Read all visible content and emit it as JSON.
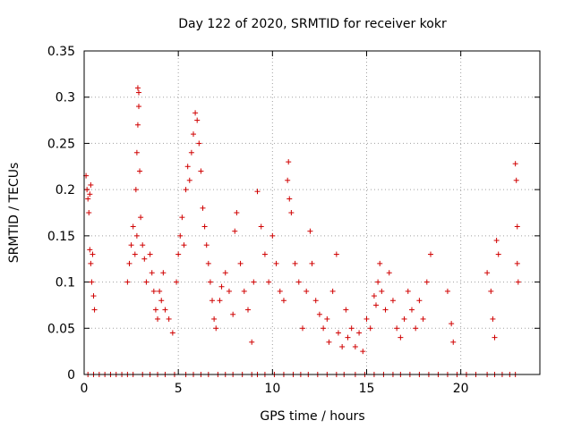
{
  "chart_data": {
    "type": "scatter",
    "title": "Day 122 of 2020, SRMTID for receiver kokr",
    "xlabel": "GPS time / hours",
    "ylabel": "SRMTID / TECUs",
    "xlim": [
      0,
      24.2
    ],
    "ylim": [
      0,
      0.35
    ],
    "xticks": [
      0,
      5,
      10,
      15,
      20
    ],
    "xtick_labels": [
      "0",
      "5",
      "10",
      "15",
      "20"
    ],
    "yticks": [
      0,
      0.05,
      0.1,
      0.15,
      0.2,
      0.25,
      0.3,
      0.35
    ],
    "ytick_labels": [
      "0",
      "0.05",
      "0.1",
      "0.15",
      "0.2",
      "0.25",
      "0.3",
      "0.35"
    ],
    "grid": true,
    "marker": "+",
    "color": "#d00000",
    "series": [
      {
        "name": "SRMTID",
        "points": [
          [
            0.1,
            0.215
          ],
          [
            0.15,
            0.2
          ],
          [
            0.2,
            0.19
          ],
          [
            0.25,
            0.175
          ],
          [
            0.3,
            0.195
          ],
          [
            0.35,
            0.205
          ],
          [
            0.3,
            0.135
          ],
          [
            0.35,
            0.12
          ],
          [
            0.4,
            0.1
          ],
          [
            0.45,
            0.13
          ],
          [
            0.5,
            0.085
          ],
          [
            0.55,
            0.07
          ],
          [
            2.3,
            0.1
          ],
          [
            2.4,
            0.12
          ],
          [
            2.5,
            0.14
          ],
          [
            2.6,
            0.16
          ],
          [
            2.7,
            0.13
          ],
          [
            2.8,
            0.15
          ],
          [
            2.75,
            0.2
          ],
          [
            2.8,
            0.24
          ],
          [
            2.85,
            0.27
          ],
          [
            2.9,
            0.29
          ],
          [
            2.9,
            0.305
          ],
          [
            2.85,
            0.31
          ],
          [
            2.95,
            0.22
          ],
          [
            3.0,
            0.17
          ],
          [
            3.1,
            0.14
          ],
          [
            3.2,
            0.125
          ],
          [
            3.3,
            0.1
          ],
          [
            3.5,
            0.13
          ],
          [
            3.6,
            0.11
          ],
          [
            3.7,
            0.09
          ],
          [
            3.8,
            0.07
          ],
          [
            3.9,
            0.06
          ],
          [
            4.0,
            0.09
          ],
          [
            4.1,
            0.08
          ],
          [
            4.2,
            0.11
          ],
          [
            4.3,
            0.07
          ],
          [
            4.5,
            0.06
          ],
          [
            4.7,
            0.045
          ],
          [
            4.9,
            0.1
          ],
          [
            5.0,
            0.13
          ],
          [
            5.1,
            0.15
          ],
          [
            5.2,
            0.17
          ],
          [
            5.3,
            0.14
          ],
          [
            5.4,
            0.2
          ],
          [
            5.5,
            0.225
          ],
          [
            5.6,
            0.21
          ],
          [
            5.7,
            0.24
          ],
          [
            5.8,
            0.26
          ],
          [
            5.9,
            0.283
          ],
          [
            6.0,
            0.275
          ],
          [
            6.1,
            0.25
          ],
          [
            6.2,
            0.22
          ],
          [
            6.3,
            0.18
          ],
          [
            6.4,
            0.16
          ],
          [
            6.5,
            0.14
          ],
          [
            6.6,
            0.12
          ],
          [
            6.7,
            0.1
          ],
          [
            6.8,
            0.08
          ],
          [
            6.9,
            0.06
          ],
          [
            7.0,
            0.05
          ],
          [
            7.2,
            0.08
          ],
          [
            7.3,
            0.095
          ],
          [
            7.5,
            0.11
          ],
          [
            7.7,
            0.09
          ],
          [
            7.9,
            0.065
          ],
          [
            8.0,
            0.155
          ],
          [
            8.1,
            0.175
          ],
          [
            8.3,
            0.12
          ],
          [
            8.5,
            0.09
          ],
          [
            8.7,
            0.07
          ],
          [
            8.9,
            0.035
          ],
          [
            9.0,
            0.1
          ],
          [
            9.2,
            0.198
          ],
          [
            9.4,
            0.16
          ],
          [
            9.6,
            0.13
          ],
          [
            9.8,
            0.1
          ],
          [
            10.0,
            0.15
          ],
          [
            10.2,
            0.12
          ],
          [
            10.4,
            0.09
          ],
          [
            10.6,
            0.08
          ],
          [
            10.8,
            0.21
          ],
          [
            10.85,
            0.23
          ],
          [
            10.9,
            0.19
          ],
          [
            11.0,
            0.175
          ],
          [
            11.2,
            0.12
          ],
          [
            11.4,
            0.1
          ],
          [
            11.6,
            0.05
          ],
          [
            11.8,
            0.09
          ],
          [
            12.0,
            0.155
          ],
          [
            12.1,
            0.12
          ],
          [
            12.3,
            0.08
          ],
          [
            12.5,
            0.065
          ],
          [
            12.7,
            0.05
          ],
          [
            12.9,
            0.06
          ],
          [
            13.0,
            0.035
          ],
          [
            13.2,
            0.09
          ],
          [
            13.4,
            0.13
          ],
          [
            13.5,
            0.045
          ],
          [
            13.7,
            0.03
          ],
          [
            13.9,
            0.07
          ],
          [
            14.0,
            0.04
          ],
          [
            14.2,
            0.05
          ],
          [
            14.4,
            0.03
          ],
          [
            14.6,
            0.045
          ],
          [
            14.8,
            0.025
          ],
          [
            15.0,
            0.06
          ],
          [
            15.2,
            0.05
          ],
          [
            15.4,
            0.085
          ],
          [
            15.5,
            0.075
          ],
          [
            15.6,
            0.1
          ],
          [
            15.7,
            0.12
          ],
          [
            15.8,
            0.09
          ],
          [
            16.0,
            0.07
          ],
          [
            16.2,
            0.11
          ],
          [
            16.4,
            0.08
          ],
          [
            16.6,
            0.05
          ],
          [
            16.8,
            0.04
          ],
          [
            17.0,
            0.06
          ],
          [
            17.2,
            0.09
          ],
          [
            17.4,
            0.07
          ],
          [
            17.6,
            0.05
          ],
          [
            17.8,
            0.08
          ],
          [
            18.0,
            0.06
          ],
          [
            18.2,
            0.1
          ],
          [
            18.4,
            0.13
          ],
          [
            19.3,
            0.09
          ],
          [
            19.5,
            0.055
          ],
          [
            19.6,
            0.035
          ],
          [
            21.4,
            0.11
          ],
          [
            21.6,
            0.09
          ],
          [
            21.7,
            0.06
          ],
          [
            21.8,
            0.04
          ],
          [
            21.9,
            0.145
          ],
          [
            22.0,
            0.13
          ],
          [
            22.9,
            0.228
          ],
          [
            22.95,
            0.21
          ],
          [
            23.0,
            0.16
          ],
          [
            23.0,
            0.12
          ],
          [
            23.05,
            0.1
          ]
        ],
        "zeros_x": [
          0.2,
          0.5,
          0.8,
          1.1,
          1.4,
          1.7,
          2.0,
          2.3,
          2.6,
          3.1,
          3.5,
          3.9,
          4.3,
          4.8,
          5.4,
          5.8,
          6.2,
          6.6,
          7.1,
          7.5,
          7.9,
          8.4,
          8.9,
          9.2,
          9.6,
          10.1,
          10.6,
          11.1,
          11.5,
          11.9,
          12.4,
          12.9,
          13.4,
          13.8,
          14.4,
          14.9,
          15.4,
          15.9,
          16.4,
          16.8,
          17.3,
          17.8,
          18.3,
          18.8,
          19.3,
          19.8,
          20.3,
          20.8,
          21.4,
          21.8,
          22.2,
          22.6,
          22.9
        ]
      }
    ]
  }
}
